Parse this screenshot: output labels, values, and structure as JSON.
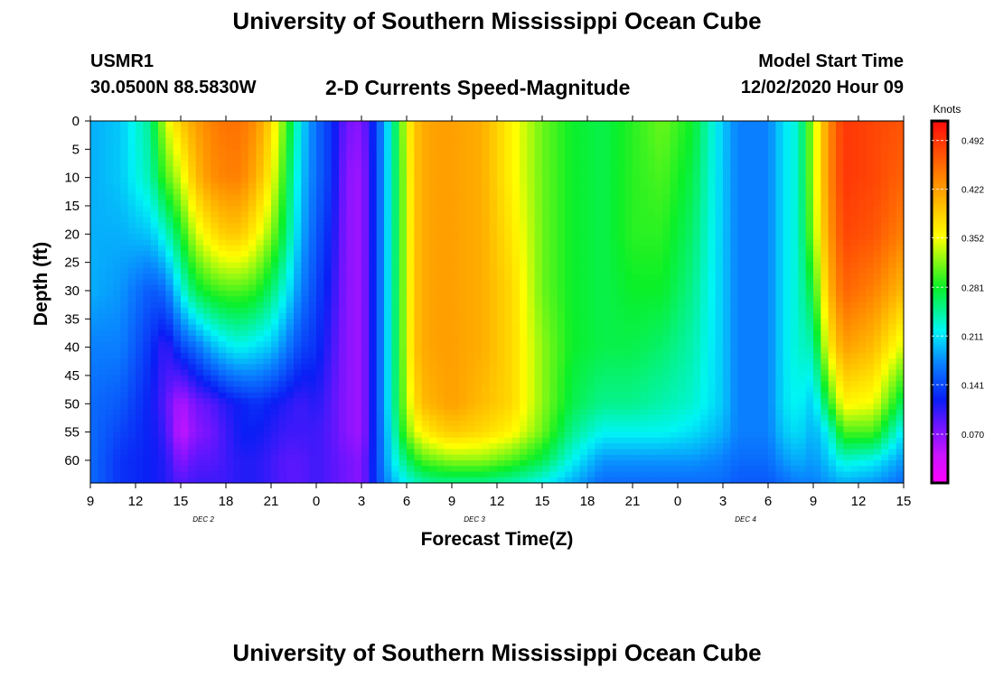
{
  "header": {
    "title": "University of Southern Mississippi Ocean Cube",
    "station": "USMR1",
    "coordinates": "30.0500N 88.5830W",
    "subtitle": "2-D Currents Speed-Magnitude",
    "model_start_label": "Model Start Time",
    "model_start_value": "12/02/2020 Hour 09"
  },
  "footer": {
    "title": "University of Southern Mississippi Ocean Cube"
  },
  "chart_data": {
    "type": "heatmap",
    "xlabel": "Forecast Time(Z)",
    "ylabel": "Depth (ft)",
    "colorbar_unit": "Knots",
    "x_ticks": [
      "9",
      "12",
      "15",
      "18",
      "21",
      "0",
      "3",
      "6",
      "9",
      "12",
      "15",
      "18",
      "21",
      "0",
      "3",
      "6",
      "9",
      "12",
      "15"
    ],
    "day_labels": [
      {
        "label": "DEC 2",
        "tick_index": 2.5
      },
      {
        "label": "DEC 3",
        "tick_index": 8.5
      },
      {
        "label": "DEC 4",
        "tick_index": 14.5
      }
    ],
    "y_ticks": [
      0,
      5,
      10,
      15,
      20,
      25,
      30,
      35,
      40,
      45,
      50,
      55,
      60
    ],
    "ylim": [
      0,
      64
    ],
    "xlim_hours": [
      0,
      54
    ],
    "colorbar_ticks": [
      0.492,
      0.422,
      0.352,
      0.281,
      0.211,
      0.141,
      0.07
    ],
    "colorbar_range": [
      0.0,
      0.52
    ],
    "depths": [
      0,
      10,
      20,
      30,
      40,
      50,
      55,
      60,
      64
    ],
    "hours": [
      0,
      2,
      4,
      5,
      6,
      7,
      8,
      9,
      10,
      11,
      12,
      13,
      14,
      15,
      16,
      17,
      18,
      19,
      20,
      21,
      21.5,
      22,
      23,
      24,
      26,
      28,
      30,
      32,
      34,
      36,
      38,
      40,
      42,
      43,
      44,
      45,
      46,
      47,
      48,
      49,
      50,
      52,
      54
    ],
    "speed_knots": [
      [
        0.19,
        0.19,
        0.19,
        0.19,
        0.17,
        0.16,
        0.16,
        0.16,
        0.16
      ],
      [
        0.2,
        0.2,
        0.19,
        0.18,
        0.17,
        0.15,
        0.14,
        0.13,
        0.13
      ],
      [
        0.25,
        0.24,
        0.2,
        0.15,
        0.13,
        0.12,
        0.12,
        0.12,
        0.12
      ],
      [
        0.34,
        0.3,
        0.23,
        0.16,
        0.1,
        0.09,
        0.1,
        0.11,
        0.11
      ],
      [
        0.39,
        0.34,
        0.28,
        0.22,
        0.14,
        0.05,
        0.04,
        0.07,
        0.09
      ],
      [
        0.42,
        0.4,
        0.34,
        0.27,
        0.16,
        0.08,
        0.07,
        0.09,
        0.1
      ],
      [
        0.44,
        0.43,
        0.37,
        0.29,
        0.19,
        0.09,
        0.08,
        0.09,
        0.1
      ],
      [
        0.45,
        0.44,
        0.39,
        0.3,
        0.21,
        0.11,
        0.1,
        0.1,
        0.1
      ],
      [
        0.45,
        0.44,
        0.39,
        0.3,
        0.22,
        0.12,
        0.12,
        0.11,
        0.11
      ],
      [
        0.43,
        0.41,
        0.36,
        0.29,
        0.21,
        0.13,
        0.12,
        0.11,
        0.11
      ],
      [
        0.38,
        0.36,
        0.32,
        0.26,
        0.2,
        0.12,
        0.11,
        0.1,
        0.1
      ],
      [
        0.3,
        0.28,
        0.26,
        0.22,
        0.17,
        0.11,
        0.1,
        0.09,
        0.09
      ],
      [
        0.21,
        0.2,
        0.19,
        0.17,
        0.14,
        0.1,
        0.1,
        0.09,
        0.09
      ],
      [
        0.16,
        0.16,
        0.15,
        0.14,
        0.13,
        0.11,
        0.1,
        0.1,
        0.1
      ],
      [
        0.13,
        0.13,
        0.12,
        0.11,
        0.1,
        0.09,
        0.09,
        0.09,
        0.09
      ],
      [
        0.08,
        0.07,
        0.07,
        0.07,
        0.07,
        0.07,
        0.07,
        0.08,
        0.08
      ],
      [
        0.07,
        0.06,
        0.06,
        0.06,
        0.06,
        0.06,
        0.06,
        0.07,
        0.07
      ],
      [
        0.14,
        0.14,
        0.14,
        0.14,
        0.14,
        0.14,
        0.14,
        0.14,
        0.14
      ],
      [
        0.23,
        0.23,
        0.23,
        0.23,
        0.23,
        0.23,
        0.22,
        0.21,
        0.19
      ],
      [
        0.35,
        0.34,
        0.34,
        0.34,
        0.34,
        0.33,
        0.31,
        0.26,
        0.22
      ],
      [
        0.39,
        0.39,
        0.39,
        0.39,
        0.39,
        0.37,
        0.34,
        0.28,
        0.23
      ],
      [
        0.41,
        0.41,
        0.41,
        0.41,
        0.41,
        0.4,
        0.36,
        0.3,
        0.24
      ],
      [
        0.42,
        0.42,
        0.42,
        0.42,
        0.42,
        0.41,
        0.38,
        0.31,
        0.25
      ],
      [
        0.42,
        0.42,
        0.42,
        0.42,
        0.42,
        0.42,
        0.39,
        0.32,
        0.25
      ],
      [
        0.41,
        0.41,
        0.41,
        0.41,
        0.41,
        0.4,
        0.38,
        0.32,
        0.25
      ],
      [
        0.36,
        0.36,
        0.37,
        0.38,
        0.38,
        0.38,
        0.36,
        0.3,
        0.24
      ],
      [
        0.31,
        0.31,
        0.31,
        0.31,
        0.32,
        0.32,
        0.31,
        0.27,
        0.22
      ],
      [
        0.28,
        0.28,
        0.28,
        0.28,
        0.28,
        0.27,
        0.25,
        0.22,
        0.19
      ],
      [
        0.27,
        0.27,
        0.27,
        0.27,
        0.27,
        0.25,
        0.22,
        0.18,
        0.16
      ],
      [
        0.29,
        0.29,
        0.29,
        0.28,
        0.27,
        0.25,
        0.22,
        0.18,
        0.16
      ],
      [
        0.31,
        0.3,
        0.29,
        0.28,
        0.26,
        0.24,
        0.22,
        0.18,
        0.16
      ],
      [
        0.28,
        0.27,
        0.26,
        0.25,
        0.24,
        0.23,
        0.21,
        0.18,
        0.16
      ],
      [
        0.2,
        0.2,
        0.2,
        0.2,
        0.2,
        0.2,
        0.19,
        0.17,
        0.16
      ],
      [
        0.17,
        0.17,
        0.17,
        0.17,
        0.17,
        0.17,
        0.17,
        0.16,
        0.15
      ],
      [
        0.17,
        0.17,
        0.17,
        0.17,
        0.17,
        0.17,
        0.17,
        0.16,
        0.15
      ],
      [
        0.17,
        0.17,
        0.17,
        0.17,
        0.17,
        0.17,
        0.17,
        0.16,
        0.15
      ],
      [
        0.21,
        0.21,
        0.21,
        0.21,
        0.21,
        0.21,
        0.2,
        0.18,
        0.16
      ],
      [
        0.23,
        0.23,
        0.23,
        0.23,
        0.23,
        0.22,
        0.21,
        0.19,
        0.17
      ],
      [
        0.33,
        0.33,
        0.32,
        0.28,
        0.24,
        0.2,
        0.19,
        0.18,
        0.17
      ],
      [
        0.43,
        0.43,
        0.42,
        0.4,
        0.36,
        0.28,
        0.22,
        0.2,
        0.18
      ],
      [
        0.49,
        0.49,
        0.48,
        0.46,
        0.42,
        0.36,
        0.3,
        0.23,
        0.19
      ],
      [
        0.48,
        0.48,
        0.47,
        0.44,
        0.4,
        0.35,
        0.3,
        0.22,
        0.18
      ],
      [
        0.47,
        0.46,
        0.44,
        0.4,
        0.34,
        0.26,
        0.21,
        0.18,
        0.16
      ]
    ]
  }
}
